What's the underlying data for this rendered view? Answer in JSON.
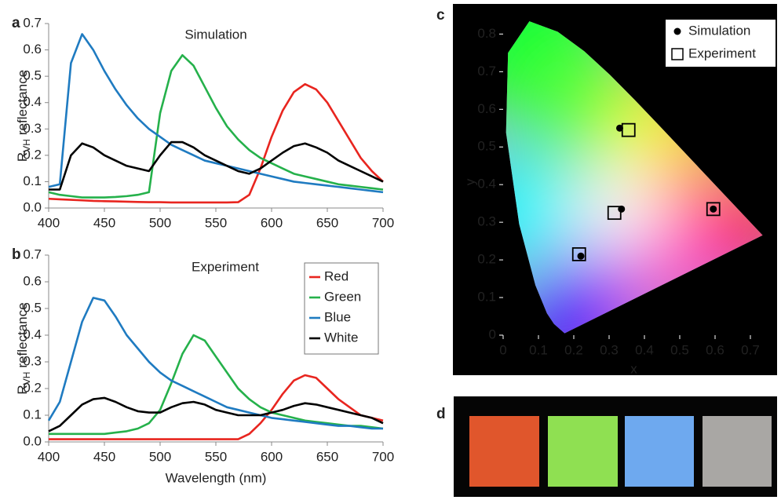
{
  "chart_data": [
    {
      "type": "line",
      "panel_label": "a",
      "annotation": "Simulation",
      "ylabel": {
        "text": "R",
        "subscript": "VH",
        "suffix": "reflectance"
      },
      "x": [
        400,
        410,
        420,
        430,
        440,
        450,
        460,
        470,
        480,
        490,
        500,
        510,
        520,
        530,
        540,
        550,
        560,
        570,
        580,
        590,
        600,
        610,
        620,
        630,
        640,
        650,
        660,
        670,
        680,
        690,
        700
      ],
      "series": [
        {
          "color": "#e8251f",
          "values": [
            0.035,
            0.033,
            0.031,
            0.029,
            0.027,
            0.026,
            0.025,
            0.024,
            0.023,
            0.022,
            0.022,
            0.021,
            0.021,
            0.021,
            0.021,
            0.021,
            0.021,
            0.022,
            0.05,
            0.15,
            0.27,
            0.37,
            0.44,
            0.47,
            0.45,
            0.4,
            0.33,
            0.26,
            0.19,
            0.14,
            0.1
          ]
        },
        {
          "color": "#25b14b",
          "values": [
            0.06,
            0.05,
            0.045,
            0.04,
            0.04,
            0.04,
            0.042,
            0.045,
            0.05,
            0.06,
            0.36,
            0.52,
            0.58,
            0.54,
            0.46,
            0.38,
            0.31,
            0.26,
            0.22,
            0.19,
            0.17,
            0.15,
            0.13,
            0.12,
            0.11,
            0.1,
            0.09,
            0.085,
            0.08,
            0.075,
            0.07
          ]
        },
        {
          "color": "#1f7bc1",
          "values": [
            0.08,
            0.09,
            0.55,
            0.66,
            0.6,
            0.52,
            0.45,
            0.39,
            0.34,
            0.3,
            0.27,
            0.24,
            0.22,
            0.2,
            0.18,
            0.17,
            0.16,
            0.15,
            0.14,
            0.13,
            0.12,
            0.11,
            0.1,
            0.095,
            0.09,
            0.085,
            0.08,
            0.075,
            0.07,
            0.065,
            0.06
          ]
        },
        {
          "color": "#000000",
          "values": [
            0.07,
            0.07,
            0.2,
            0.245,
            0.23,
            0.2,
            0.18,
            0.16,
            0.15,
            0.14,
            0.2,
            0.25,
            0.25,
            0.23,
            0.2,
            0.18,
            0.16,
            0.14,
            0.13,
            0.15,
            0.18,
            0.21,
            0.235,
            0.245,
            0.23,
            0.21,
            0.18,
            0.16,
            0.14,
            0.12,
            0.1
          ]
        }
      ],
      "xlim": [
        400,
        700
      ],
      "xticks": [
        400,
        450,
        500,
        550,
        600,
        650,
        700
      ],
      "ylim": [
        0,
        0.7
      ],
      "yticks": [
        {
          "value": 0,
          "label": "0.0"
        },
        0.1,
        0.2,
        0.3,
        0.4,
        0.5,
        0.6,
        0.7
      ]
    },
    {
      "type": "line",
      "panel_label": "b",
      "annotation": "Experiment",
      "ylabel": {
        "text": "R",
        "subscript": "VH",
        "suffix": "reflectance"
      },
      "xlabel": "Wavelength (nm)",
      "x": [
        400,
        410,
        420,
        430,
        440,
        450,
        460,
        470,
        480,
        490,
        500,
        510,
        520,
        530,
        540,
        550,
        560,
        570,
        580,
        590,
        600,
        610,
        620,
        630,
        640,
        650,
        660,
        670,
        680,
        690,
        700
      ],
      "series": [
        {
          "name": "Red",
          "color": "#e8251f",
          "values": [
            0.01,
            0.01,
            0.01,
            0.01,
            0.01,
            0.01,
            0.01,
            0.01,
            0.01,
            0.01,
            0.01,
            0.01,
            0.01,
            0.01,
            0.01,
            0.01,
            0.01,
            0.01,
            0.03,
            0.07,
            0.12,
            0.18,
            0.23,
            0.25,
            0.24,
            0.2,
            0.16,
            0.13,
            0.1,
            0.09,
            0.08
          ]
        },
        {
          "name": "Green",
          "color": "#25b14b",
          "values": [
            0.03,
            0.03,
            0.03,
            0.03,
            0.03,
            0.03,
            0.035,
            0.04,
            0.05,
            0.07,
            0.12,
            0.22,
            0.33,
            0.4,
            0.38,
            0.32,
            0.26,
            0.2,
            0.16,
            0.13,
            0.11,
            0.1,
            0.09,
            0.08,
            0.075,
            0.07,
            0.065,
            0.06,
            0.06,
            0.055,
            0.05
          ]
        },
        {
          "name": "Blue",
          "color": "#1f7bc1",
          "values": [
            0.08,
            0.15,
            0.3,
            0.45,
            0.54,
            0.53,
            0.47,
            0.4,
            0.35,
            0.3,
            0.26,
            0.23,
            0.21,
            0.19,
            0.17,
            0.15,
            0.13,
            0.12,
            0.11,
            0.1,
            0.09,
            0.085,
            0.08,
            0.075,
            0.07,
            0.065,
            0.06,
            0.06,
            0.055,
            0.05,
            0.05
          ]
        },
        {
          "name": "White",
          "color": "#000000",
          "values": [
            0.04,
            0.06,
            0.1,
            0.14,
            0.16,
            0.165,
            0.15,
            0.13,
            0.115,
            0.11,
            0.11,
            0.13,
            0.145,
            0.15,
            0.14,
            0.12,
            0.11,
            0.1,
            0.1,
            0.1,
            0.11,
            0.12,
            0.135,
            0.145,
            0.14,
            0.13,
            0.12,
            0.11,
            0.1,
            0.09,
            0.07
          ]
        }
      ],
      "legend": "top-right",
      "xlim": [
        400,
        700
      ],
      "xticks": [
        400,
        450,
        500,
        550,
        600,
        650,
        700
      ],
      "ylim": [
        0,
        0.7
      ],
      "yticks": [
        {
          "value": 0,
          "label": "0.0"
        },
        0.1,
        0.2,
        0.3,
        0.4,
        0.5,
        0.6,
        0.7
      ]
    },
    {
      "type": "scatter",
      "panel_label": "c",
      "xlabel": "x",
      "ylabel": "y",
      "series": [
        {
          "name": "Simulation",
          "marker": "circle",
          "color": "#000000",
          "x": [
            0.33,
            0.335,
            0.595,
            0.22
          ],
          "y": [
            0.55,
            0.335,
            0.335,
            0.21
          ]
        },
        {
          "name": "Experiment",
          "marker": "square",
          "color": "#000000",
          "x": [
            0.355,
            0.315,
            0.595,
            0.215
          ],
          "y": [
            0.545,
            0.325,
            0.335,
            0.215
          ]
        }
      ],
      "legend": "top-right",
      "xlim": [
        0,
        0.74
      ],
      "xticks": [
        0,
        0.1,
        0.2,
        0.3,
        0.4,
        0.5,
        0.6,
        0.7
      ],
      "ylim": [
        0,
        0.88
      ],
      "yticks": [
        0,
        0.1,
        0.2,
        0.3,
        0.4,
        0.5,
        0.6,
        0.7,
        0.8
      ]
    }
  ],
  "image_panel": {
    "label": "d"
  }
}
